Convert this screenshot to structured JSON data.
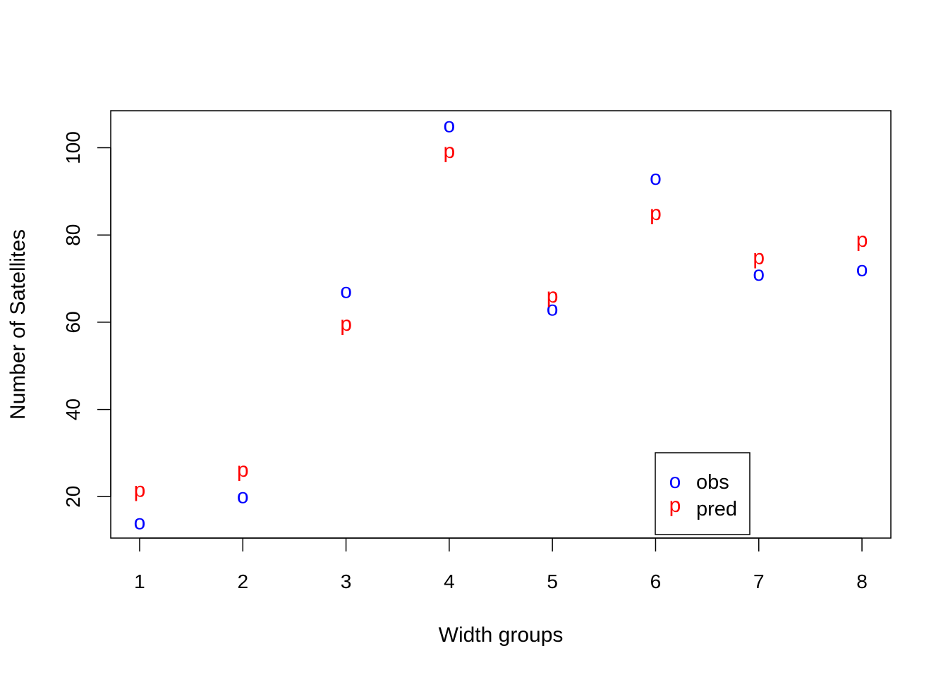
{
  "chart_data": {
    "type": "scatter",
    "title": "",
    "xlabel": "Width groups",
    "ylabel": "Number of Satellites",
    "x_ticks": [
      "1",
      "2",
      "3",
      "4",
      "5",
      "6",
      "7",
      "8"
    ],
    "y_ticks": [
      "20",
      "40",
      "60",
      "80",
      "100"
    ],
    "xlim": [
      0.72,
      8.28
    ],
    "ylim": [
      10.5,
      108.5
    ],
    "grid": false,
    "legend_position": "bottom-right",
    "series": [
      {
        "name": "obs",
        "symbol": "o",
        "color": "#0000ff",
        "x": [
          1,
          2,
          3,
          4,
          5,
          6,
          7,
          8
        ],
        "y": [
          14,
          20,
          67,
          105,
          63,
          93,
          71,
          72
        ]
      },
      {
        "name": "pred",
        "symbol": "p",
        "color": "#ff0000",
        "x": [
          1,
          2,
          3,
          4,
          5,
          6,
          7,
          8
        ],
        "y": [
          20.6,
          25.2,
          58.7,
          98.3,
          65.2,
          84.1,
          74.0,
          77.9
        ]
      }
    ]
  }
}
